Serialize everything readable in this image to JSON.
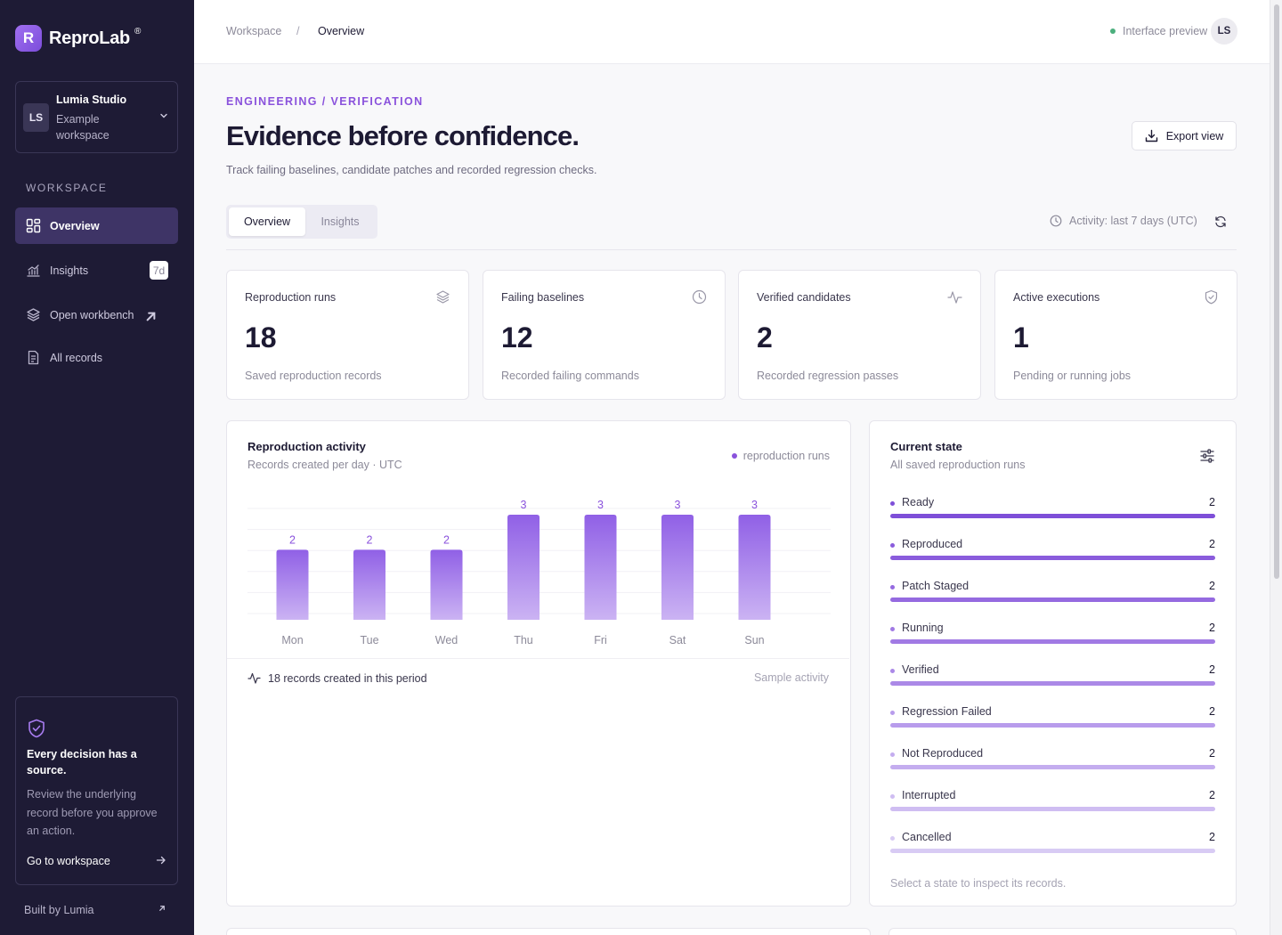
{
  "app": {
    "name": "ReproLab",
    "logo_letter": "R",
    "trademark": "®",
    "brand_color": "#8a52dc"
  },
  "workspace": {
    "initials": "LS",
    "name": "Lumia Studio",
    "subtitle": "Example workspace"
  },
  "sidebar": {
    "section_label": "WORKSPACE",
    "items": [
      {
        "label": "Overview",
        "icon": "dashboard-icon",
        "active": true
      },
      {
        "label": "Insights",
        "icon": "chart-icon",
        "badge": "7d"
      },
      {
        "label": "Open workbench",
        "icon": "layers-icon",
        "external": true
      },
      {
        "label": "All records",
        "icon": "document-icon"
      }
    ],
    "promo": {
      "title": "Every decision has a source.",
      "text": "Review the underlying record before you approve an action.",
      "link": "Go to workspace"
    },
    "footer": "Built by Lumia"
  },
  "topbar": {
    "breadcrumb": [
      "Workspace",
      "/",
      "Overview"
    ],
    "preview_label": "Interface preview",
    "avatar_initials": "LS"
  },
  "header": {
    "eyebrow": "ENGINEERING / VERIFICATION",
    "title": "Evidence before confidence.",
    "subtitle": "Track failing baselines, candidate patches and recorded regression checks.",
    "export_label": "Export view"
  },
  "tabs": [
    {
      "label": "Overview",
      "active": true
    },
    {
      "label": "Insights",
      "active": false
    }
  ],
  "activity_label": "Activity: last 7 days (UTC)",
  "stats": [
    {
      "label": "Reproduction runs",
      "value": "18",
      "note": "Saved reproduction records",
      "icon": "layers-icon"
    },
    {
      "label": "Failing baselines",
      "value": "12",
      "note": "Recorded failing commands",
      "icon": "clock-icon"
    },
    {
      "label": "Verified candidates",
      "value": "2",
      "note": "Recorded regression passes",
      "icon": "pulse-icon"
    },
    {
      "label": "Active executions",
      "value": "1",
      "note": "Pending or running jobs",
      "icon": "shield-check-icon"
    }
  ],
  "activity_panel": {
    "title": "Reproduction activity",
    "subtitle": "Records created per day · UTC",
    "legend": "reproduction runs",
    "footer_left": "18 records created in this period",
    "footer_right": "Sample activity"
  },
  "chart_data": {
    "type": "bar",
    "categories": [
      "Mon",
      "Tue",
      "Wed",
      "Thu",
      "Fri",
      "Sat",
      "Sun"
    ],
    "values": [
      2,
      2,
      2,
      3,
      3,
      3,
      3
    ],
    "series": [
      {
        "name": "reproduction runs",
        "values": [
          2,
          2,
          2,
          3,
          3,
          3,
          3
        ]
      }
    ],
    "title": "Reproduction activity",
    "subtitle": "Records created per day · UTC",
    "xlabel": "",
    "ylabel": "",
    "ylim": [
      0,
      3
    ],
    "grid": true,
    "legend": "top-right",
    "color": "#8a52dc"
  },
  "state_panel": {
    "title": "Current state",
    "subtitle": "All saved reproduction runs",
    "hint": "Select a state to inspect its records.",
    "states": [
      {
        "label": "Ready",
        "count": "2",
        "color": "#7e4fd8"
      },
      {
        "label": "Reproduced",
        "count": "2",
        "color": "#8a5cdc"
      },
      {
        "label": "Patch Staged",
        "count": "2",
        "color": "#956ae0"
      },
      {
        "label": "Running",
        "count": "2",
        "color": "#a17ae4"
      },
      {
        "label": "Verified",
        "count": "2",
        "color": "#ab89e7"
      },
      {
        "label": "Regression Failed",
        "count": "2",
        "color": "#b89cec"
      },
      {
        "label": "Not Reproduced",
        "count": "2",
        "color": "#c4adef"
      },
      {
        "label": "Interrupted",
        "count": "2",
        "color": "#cfbdf2"
      },
      {
        "label": "Cancelled",
        "count": "2",
        "color": "#d8cbf4"
      }
    ]
  }
}
